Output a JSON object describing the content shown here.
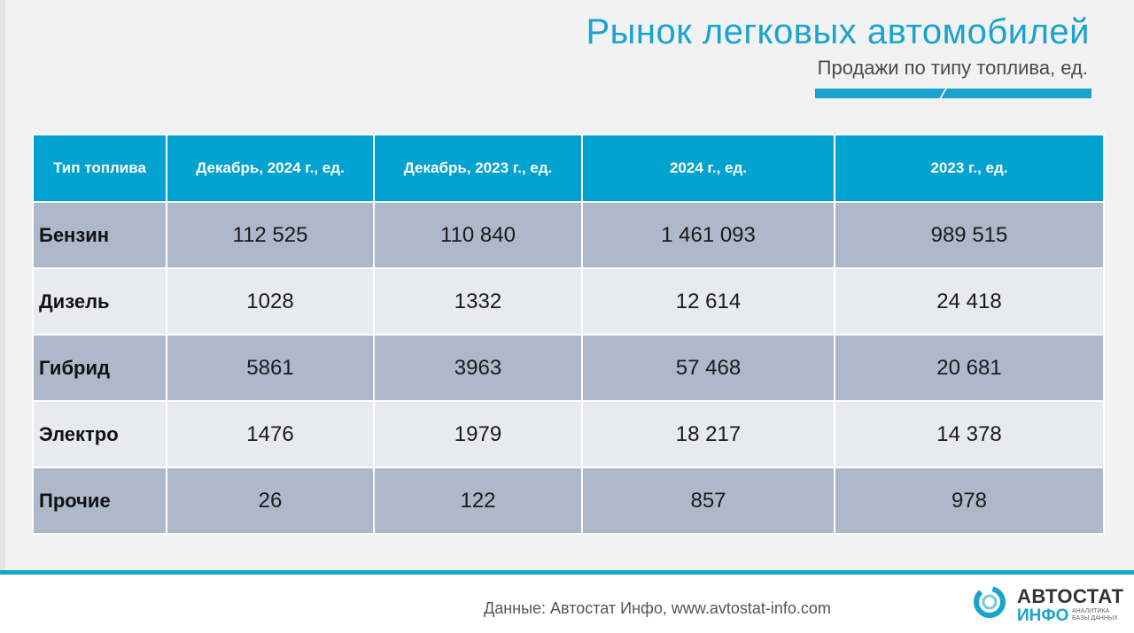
{
  "header": {
    "title": "Рынок легковых автомобилей",
    "subtitle": "Продажи по типу топлива, ед."
  },
  "table": {
    "columns": [
      "Тип топлива",
      "Декабрь, 2024 г., ед.",
      "Декабрь, 2023 г., ед.",
      "2024 г., ед.",
      "2023 г., ед."
    ],
    "rows": [
      {
        "type": "Бензин",
        "dec2024": "112 525",
        "dec2023": "110 840",
        "y2024": "1 461 093",
        "y2023": "989 515"
      },
      {
        "type": "Дизель",
        "dec2024": "1028",
        "dec2023": "1332",
        "y2024": "12 614",
        "y2023": "24 418"
      },
      {
        "type": "Гибрид",
        "dec2024": "5861",
        "dec2023": "3963",
        "y2024": "57 468",
        "y2023": "20 681"
      },
      {
        "type": "Электро",
        "dec2024": "1476",
        "dec2023": "1979",
        "y2024": "18 217",
        "y2023": "14 378"
      },
      {
        "type": "Прочие",
        "dec2024": "26",
        "dec2023": "122",
        "y2024": "857",
        "y2023": "978"
      }
    ]
  },
  "footer": {
    "source": "Данные: Автостат Инфо, www.avtostat-info.com",
    "logo_line1": "АВТОСТАТ",
    "logo_line2": "ИНФО",
    "logo_tagline_1": "АНАЛИТИКА",
    "logo_tagline_2": "БАЗЫ ДАННЫХ"
  },
  "colors": {
    "accent": "#1aa3cf",
    "header_bg": "#00a3d0",
    "row_dark": "#adb9ca",
    "row_light": "#e8e9f1"
  }
}
